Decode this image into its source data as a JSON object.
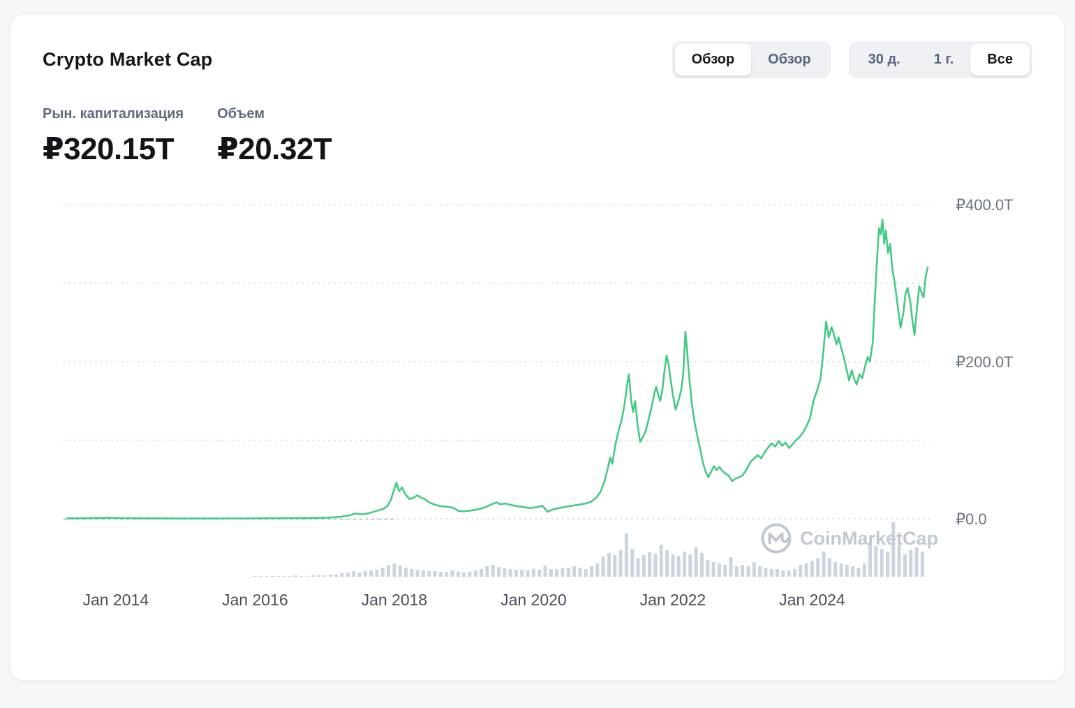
{
  "header": {
    "title": "Crypto Market Cap",
    "view_toggle": {
      "options": [
        "Обзор",
        "Обзор"
      ],
      "selected_index": 0
    },
    "range_toggle": {
      "options": [
        "30 д.",
        "1 г.",
        "Все"
      ],
      "selected_index": 2
    }
  },
  "stats": [
    {
      "label": "Рын. капитализация",
      "value": "₽320.15T"
    },
    {
      "label": "Объем",
      "value": "₽20.32T"
    }
  ],
  "watermark": {
    "text": "CoinMarketCap"
  },
  "chart_data": {
    "type": "line",
    "title": "Crypto Market Cap",
    "x_range": [
      2013.25,
      2025.68
    ],
    "x_tick_positions": [
      2014.0,
      2016.0,
      2018.0,
      2020.0,
      2022.0,
      2024.0
    ],
    "x_tick_labels": [
      "Jan 2014",
      "Jan 2016",
      "Jan 2018",
      "Jan 2020",
      "Jan 2022",
      "Jan 2024"
    ],
    "ylim": [
      0,
      400
    ],
    "y_unit": "₽T",
    "y_gridlines": [
      400,
      300,
      200,
      100,
      0
    ],
    "y_tick_labels": [
      {
        "value": 400,
        "label": "₽400.0T"
      },
      {
        "value": 200,
        "label": "₽200.0T"
      },
      {
        "value": 0,
        "label": "₽0.0"
      }
    ],
    "grid": true,
    "legend": "none",
    "line_color": "#45ca85",
    "volume_color": "#ccd4e0",
    "series": [
      {
        "name": "Рын. капитализация (₽T)",
        "points": [
          [
            2013.3,
            0.5
          ],
          [
            2013.6,
            0.7
          ],
          [
            2013.92,
            1.4
          ],
          [
            2014.05,
            0.9
          ],
          [
            2014.3,
            0.6
          ],
          [
            2014.7,
            0.5
          ],
          [
            2015.0,
            0.4
          ],
          [
            2015.4,
            0.35
          ],
          [
            2015.8,
            0.45
          ],
          [
            2016.1,
            0.6
          ],
          [
            2016.4,
            0.8
          ],
          [
            2016.7,
            0.95
          ],
          [
            2016.95,
            1.2
          ],
          [
            2017.1,
            1.7
          ],
          [
            2017.25,
            2.8
          ],
          [
            2017.35,
            4.2
          ],
          [
            2017.45,
            6.8
          ],
          [
            2017.52,
            5.6
          ],
          [
            2017.6,
            6.4
          ],
          [
            2017.68,
            8.2
          ],
          [
            2017.76,
            10.5
          ],
          [
            2017.84,
            12.5
          ],
          [
            2017.9,
            16
          ],
          [
            2017.95,
            24
          ],
          [
            2018.0,
            38
          ],
          [
            2018.03,
            46
          ],
          [
            2018.07,
            35
          ],
          [
            2018.11,
            40
          ],
          [
            2018.16,
            31
          ],
          [
            2018.22,
            25
          ],
          [
            2018.28,
            27
          ],
          [
            2018.33,
            30
          ],
          [
            2018.38,
            27
          ],
          [
            2018.44,
            25
          ],
          [
            2018.5,
            21
          ],
          [
            2018.58,
            18
          ],
          [
            2018.66,
            16
          ],
          [
            2018.75,
            15.5
          ],
          [
            2018.85,
            14
          ],
          [
            2018.92,
            10
          ],
          [
            2019.0,
            9.5
          ],
          [
            2019.1,
            10.5
          ],
          [
            2019.2,
            12
          ],
          [
            2019.3,
            14.5
          ],
          [
            2019.4,
            18.5
          ],
          [
            2019.47,
            21
          ],
          [
            2019.52,
            18.5
          ],
          [
            2019.6,
            19.5
          ],
          [
            2019.68,
            17.5
          ],
          [
            2019.76,
            16
          ],
          [
            2019.85,
            15
          ],
          [
            2019.95,
            13.5
          ],
          [
            2020.05,
            15
          ],
          [
            2020.13,
            16.5
          ],
          [
            2020.2,
            9
          ],
          [
            2020.28,
            12
          ],
          [
            2020.36,
            13.5
          ],
          [
            2020.45,
            15
          ],
          [
            2020.55,
            16.5
          ],
          [
            2020.65,
            18
          ],
          [
            2020.75,
            19.5
          ],
          [
            2020.83,
            22
          ],
          [
            2020.9,
            27
          ],
          [
            2020.96,
            34
          ],
          [
            2021.02,
            48
          ],
          [
            2021.06,
            62
          ],
          [
            2021.1,
            78
          ],
          [
            2021.13,
            70
          ],
          [
            2021.17,
            92
          ],
          [
            2021.22,
            112
          ],
          [
            2021.27,
            128
          ],
          [
            2021.31,
            148
          ],
          [
            2021.34,
            168
          ],
          [
            2021.37,
            184
          ],
          [
            2021.4,
            152
          ],
          [
            2021.43,
            136
          ],
          [
            2021.46,
            150
          ],
          [
            2021.49,
            122
          ],
          [
            2021.53,
            98
          ],
          [
            2021.57,
            104
          ],
          [
            2021.61,
            112
          ],
          [
            2021.65,
            126
          ],
          [
            2021.69,
            140
          ],
          [
            2021.73,
            158
          ],
          [
            2021.76,
            168
          ],
          [
            2021.79,
            158
          ],
          [
            2021.82,
            150
          ],
          [
            2021.85,
            164
          ],
          [
            2021.88,
            188
          ],
          [
            2021.91,
            208
          ],
          [
            2021.94,
            196
          ],
          [
            2021.97,
            176
          ],
          [
            2022.0,
            158
          ],
          [
            2022.04,
            139
          ],
          [
            2022.08,
            150
          ],
          [
            2022.12,
            164
          ],
          [
            2022.15,
            186
          ],
          [
            2022.18,
            238
          ],
          [
            2022.2,
            220
          ],
          [
            2022.23,
            186
          ],
          [
            2022.27,
            148
          ],
          [
            2022.31,
            124
          ],
          [
            2022.35,
            106
          ],
          [
            2022.39,
            90
          ],
          [
            2022.43,
            72
          ],
          [
            2022.47,
            60
          ],
          [
            2022.51,
            53
          ],
          [
            2022.55,
            60
          ],
          [
            2022.59,
            67
          ],
          [
            2022.63,
            62
          ],
          [
            2022.67,
            66
          ],
          [
            2022.71,
            61
          ],
          [
            2022.75,
            58
          ],
          [
            2022.8,
            55
          ],
          [
            2022.85,
            48
          ],
          [
            2022.9,
            51
          ],
          [
            2022.95,
            53
          ],
          [
            2023.0,
            55
          ],
          [
            2023.06,
            63
          ],
          [
            2023.12,
            73
          ],
          [
            2023.17,
            77
          ],
          [
            2023.22,
            81
          ],
          [
            2023.27,
            77
          ],
          [
            2023.32,
            85
          ],
          [
            2023.37,
            91
          ],
          [
            2023.42,
            96
          ],
          [
            2023.47,
            92
          ],
          [
            2023.52,
            99
          ],
          [
            2023.57,
            93
          ],
          [
            2023.62,
            97
          ],
          [
            2023.67,
            90
          ],
          [
            2023.72,
            95
          ],
          [
            2023.77,
            100
          ],
          [
            2023.82,
            104
          ],
          [
            2023.87,
            110
          ],
          [
            2023.92,
            118
          ],
          [
            2023.97,
            128
          ],
          [
            2024.02,
            150
          ],
          [
            2024.07,
            163
          ],
          [
            2024.12,
            178
          ],
          [
            2024.16,
            212
          ],
          [
            2024.2,
            251
          ],
          [
            2024.24,
            231
          ],
          [
            2024.28,
            244
          ],
          [
            2024.31,
            236
          ],
          [
            2024.35,
            222
          ],
          [
            2024.38,
            231
          ],
          [
            2024.42,
            217
          ],
          [
            2024.46,
            204
          ],
          [
            2024.5,
            188
          ],
          [
            2024.53,
            176
          ],
          [
            2024.57,
            189
          ],
          [
            2024.6,
            179
          ],
          [
            2024.64,
            171
          ],
          [
            2024.68,
            184
          ],
          [
            2024.72,
            179
          ],
          [
            2024.76,
            194
          ],
          [
            2024.8,
            206
          ],
          [
            2024.83,
            200
          ],
          [
            2024.87,
            224
          ],
          [
            2024.9,
            278
          ],
          [
            2024.93,
            328
          ],
          [
            2024.96,
            370
          ],
          [
            2024.985,
            362
          ],
          [
            2025.01,
            381
          ],
          [
            2025.035,
            350
          ],
          [
            2025.06,
            367
          ],
          [
            2025.09,
            338
          ],
          [
            2025.12,
            350
          ],
          [
            2025.15,
            320
          ],
          [
            2025.19,
            298
          ],
          [
            2025.23,
            270
          ],
          [
            2025.27,
            243
          ],
          [
            2025.31,
            262
          ],
          [
            2025.34,
            286
          ],
          [
            2025.37,
            294
          ],
          [
            2025.41,
            276
          ],
          [
            2025.44,
            252
          ],
          [
            2025.47,
            234
          ],
          [
            2025.51,
            272
          ],
          [
            2025.54,
            296
          ],
          [
            2025.57,
            288
          ],
          [
            2025.6,
            282
          ],
          [
            2025.63,
            308
          ],
          [
            2025.66,
            320
          ]
        ]
      }
    ],
    "volume": {
      "name": "Объем (relative height)",
      "start": 2016.0,
      "interval_years": 0.083333,
      "values": [
        1,
        1,
        1,
        1,
        1,
        1,
        1,
        2,
        1,
        1,
        2,
        2,
        2,
        3,
        3,
        5,
        6,
        8,
        6,
        8,
        9,
        10,
        13,
        17,
        19,
        16,
        13,
        11,
        10,
        9,
        8,
        8,
        7,
        7,
        9,
        7,
        6,
        7,
        9,
        11,
        15,
        17,
        14,
        12,
        11,
        10,
        10,
        9,
        11,
        10,
        16,
        11,
        11,
        12,
        13,
        15,
        13,
        11,
        15,
        19,
        29,
        34,
        31,
        38,
        62,
        40,
        27,
        31,
        35,
        33,
        46,
        38,
        32,
        30,
        36,
        32,
        42,
        34,
        24,
        21,
        19,
        17,
        28,
        15,
        17,
        15,
        21,
        15,
        13,
        11,
        11,
        9,
        9,
        11,
        17,
        19,
        23,
        27,
        36,
        27,
        21,
        19,
        17,
        15,
        13,
        19,
        50,
        44,
        40,
        36,
        78,
        46,
        32,
        38,
        42,
        36
      ]
    }
  }
}
